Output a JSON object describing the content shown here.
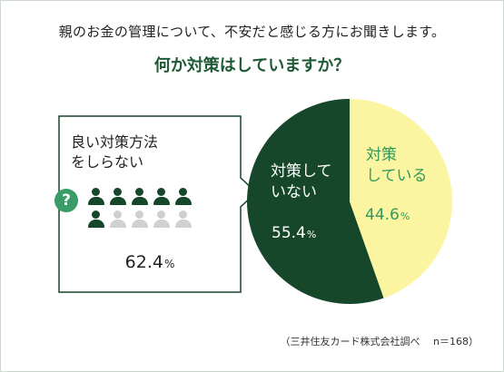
{
  "title_line1": "親のお金の管理について、不安だと感じる方にお聞きします。",
  "title_line2": "何か対策はしていますか？",
  "callout": {
    "title": "良い対策方法をしらない",
    "icon": "question-mark-icon",
    "value": "62.4",
    "unit": "%",
    "people_total": 10,
    "people_highlighted": 6
  },
  "chart_data": {
    "type": "pie",
    "slices": [
      {
        "label": "対策していない",
        "value": 55.4,
        "color": "#17472a"
      },
      {
        "label": "対策している",
        "value": 44.6,
        "color": "#fbf4a0"
      }
    ],
    "unit": "%"
  },
  "labels": {
    "no_label": "対策していない",
    "no_value": "55.4",
    "yes_label": "対策している",
    "yes_value": "44.6",
    "unit": "%"
  },
  "source": "（三井住友カード株式会社調べ　 n＝168）",
  "colors": {
    "accent_dark_green": "#17472a",
    "accent_green": "#2f9a5e",
    "pale_yellow": "#fbf4a0",
    "icon_green": "#3a9c66"
  }
}
